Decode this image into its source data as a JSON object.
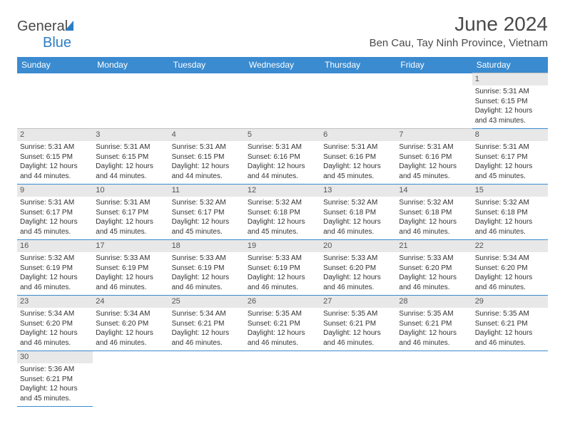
{
  "logo": {
    "text1": "General",
    "text2": "Blue"
  },
  "title": "June 2024",
  "location": "Ben Cau, Tay Ninh Province, Vietnam",
  "colors": {
    "header_bg": "#3a8bd0",
    "header_text": "#ffffff",
    "daynum_bg": "#e8e8e8",
    "row_divider": "#3a8bd0",
    "logo_blue": "#2d7dc4",
    "body_text": "#333333"
  },
  "typography": {
    "title_fontsize": 28,
    "location_fontsize": 15,
    "weekday_fontsize": 12,
    "daynum_fontsize": 11,
    "cell_fontsize": 10
  },
  "weekdays": [
    "Sunday",
    "Monday",
    "Tuesday",
    "Wednesday",
    "Thursday",
    "Friday",
    "Saturday"
  ],
  "first_weekday_index": 6,
  "days": [
    {
      "n": 1,
      "sunrise": "5:31 AM",
      "sunset": "6:15 PM",
      "daylight": "12 hours and 43 minutes."
    },
    {
      "n": 2,
      "sunrise": "5:31 AM",
      "sunset": "6:15 PM",
      "daylight": "12 hours and 44 minutes."
    },
    {
      "n": 3,
      "sunrise": "5:31 AM",
      "sunset": "6:15 PM",
      "daylight": "12 hours and 44 minutes."
    },
    {
      "n": 4,
      "sunrise": "5:31 AM",
      "sunset": "6:15 PM",
      "daylight": "12 hours and 44 minutes."
    },
    {
      "n": 5,
      "sunrise": "5:31 AM",
      "sunset": "6:16 PM",
      "daylight": "12 hours and 44 minutes."
    },
    {
      "n": 6,
      "sunrise": "5:31 AM",
      "sunset": "6:16 PM",
      "daylight": "12 hours and 45 minutes."
    },
    {
      "n": 7,
      "sunrise": "5:31 AM",
      "sunset": "6:16 PM",
      "daylight": "12 hours and 45 minutes."
    },
    {
      "n": 8,
      "sunrise": "5:31 AM",
      "sunset": "6:17 PM",
      "daylight": "12 hours and 45 minutes."
    },
    {
      "n": 9,
      "sunrise": "5:31 AM",
      "sunset": "6:17 PM",
      "daylight": "12 hours and 45 minutes."
    },
    {
      "n": 10,
      "sunrise": "5:31 AM",
      "sunset": "6:17 PM",
      "daylight": "12 hours and 45 minutes."
    },
    {
      "n": 11,
      "sunrise": "5:32 AM",
      "sunset": "6:17 PM",
      "daylight": "12 hours and 45 minutes."
    },
    {
      "n": 12,
      "sunrise": "5:32 AM",
      "sunset": "6:18 PM",
      "daylight": "12 hours and 45 minutes."
    },
    {
      "n": 13,
      "sunrise": "5:32 AM",
      "sunset": "6:18 PM",
      "daylight": "12 hours and 46 minutes."
    },
    {
      "n": 14,
      "sunrise": "5:32 AM",
      "sunset": "6:18 PM",
      "daylight": "12 hours and 46 minutes."
    },
    {
      "n": 15,
      "sunrise": "5:32 AM",
      "sunset": "6:18 PM",
      "daylight": "12 hours and 46 minutes."
    },
    {
      "n": 16,
      "sunrise": "5:32 AM",
      "sunset": "6:19 PM",
      "daylight": "12 hours and 46 minutes."
    },
    {
      "n": 17,
      "sunrise": "5:33 AM",
      "sunset": "6:19 PM",
      "daylight": "12 hours and 46 minutes."
    },
    {
      "n": 18,
      "sunrise": "5:33 AM",
      "sunset": "6:19 PM",
      "daylight": "12 hours and 46 minutes."
    },
    {
      "n": 19,
      "sunrise": "5:33 AM",
      "sunset": "6:19 PM",
      "daylight": "12 hours and 46 minutes."
    },
    {
      "n": 20,
      "sunrise": "5:33 AM",
      "sunset": "6:20 PM",
      "daylight": "12 hours and 46 minutes."
    },
    {
      "n": 21,
      "sunrise": "5:33 AM",
      "sunset": "6:20 PM",
      "daylight": "12 hours and 46 minutes."
    },
    {
      "n": 22,
      "sunrise": "5:34 AM",
      "sunset": "6:20 PM",
      "daylight": "12 hours and 46 minutes."
    },
    {
      "n": 23,
      "sunrise": "5:34 AM",
      "sunset": "6:20 PM",
      "daylight": "12 hours and 46 minutes."
    },
    {
      "n": 24,
      "sunrise": "5:34 AM",
      "sunset": "6:20 PM",
      "daylight": "12 hours and 46 minutes."
    },
    {
      "n": 25,
      "sunrise": "5:34 AM",
      "sunset": "6:21 PM",
      "daylight": "12 hours and 46 minutes."
    },
    {
      "n": 26,
      "sunrise": "5:35 AM",
      "sunset": "6:21 PM",
      "daylight": "12 hours and 46 minutes."
    },
    {
      "n": 27,
      "sunrise": "5:35 AM",
      "sunset": "6:21 PM",
      "daylight": "12 hours and 46 minutes."
    },
    {
      "n": 28,
      "sunrise": "5:35 AM",
      "sunset": "6:21 PM",
      "daylight": "12 hours and 46 minutes."
    },
    {
      "n": 29,
      "sunrise": "5:35 AM",
      "sunset": "6:21 PM",
      "daylight": "12 hours and 46 minutes."
    },
    {
      "n": 30,
      "sunrise": "5:36 AM",
      "sunset": "6:21 PM",
      "daylight": "12 hours and 45 minutes."
    }
  ],
  "labels": {
    "sunrise": "Sunrise:",
    "sunset": "Sunset:",
    "daylight": "Daylight:"
  }
}
